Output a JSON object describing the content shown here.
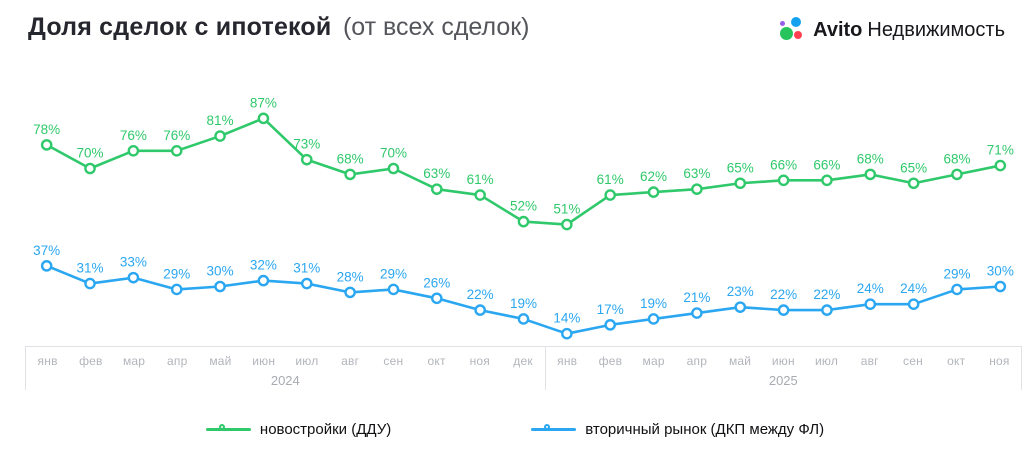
{
  "header": {
    "title": "Доля сделок с ипотекой",
    "subtitle": "(от всех сделок)",
    "brand": {
      "bold": "Avito",
      "regular": "Недвижимость",
      "dot_colors": {
        "purple": "#965EEB",
        "blue": "#14A2F0",
        "green": "#27C45D",
        "red": "#FF4053"
      }
    }
  },
  "chart_data": {
    "type": "line",
    "unit": "%",
    "title": "Доля сделок с ипотекой (от всех сделок)",
    "grid": false,
    "value_labels": true,
    "legend_position": "bottom",
    "ylim": [
      0,
      100
    ],
    "x_groups": [
      {
        "year": "2024",
        "months": [
          "янв",
          "фев",
          "мар",
          "апр",
          "май",
          "июн",
          "июл",
          "авг",
          "сен",
          "окт",
          "ноя",
          "дек"
        ]
      },
      {
        "year": "2025",
        "months": [
          "янв",
          "фев",
          "мар",
          "апр",
          "май",
          "июн",
          "июл",
          "авг",
          "сен",
          "окт",
          "ноя"
        ]
      }
    ],
    "series": [
      {
        "name": "новостройки (ДДУ)",
        "color": "#2FC96B",
        "values": [
          78,
          70,
          76,
          76,
          81,
          87,
          73,
          68,
          70,
          63,
          61,
          52,
          51,
          61,
          62,
          63,
          65,
          66,
          66,
          68,
          65,
          68,
          71
        ]
      },
      {
        "name": "вторичный рынок (ДКП между ФЛ)",
        "color": "#2BA7F1",
        "values": [
          37,
          31,
          33,
          29,
          30,
          32,
          31,
          28,
          29,
          26,
          22,
          19,
          14,
          17,
          19,
          21,
          23,
          22,
          22,
          24,
          24,
          29,
          30
        ]
      }
    ]
  }
}
